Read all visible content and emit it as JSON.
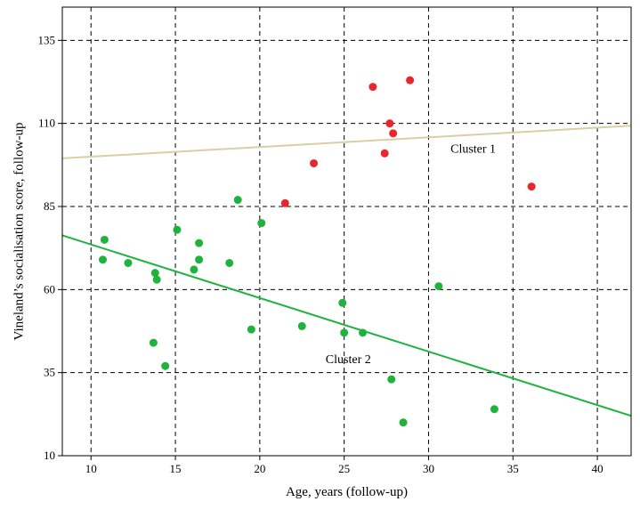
{
  "chart_data": {
    "type": "scatter",
    "xlabel": "Age, years (follow-up)",
    "ylabel": "Vineland’s socialisation score, follow-up",
    "xlim": [
      8.3,
      42
    ],
    "ylim": [
      10,
      145
    ],
    "xticks": [
      "10",
      "15",
      "20",
      "25",
      "30",
      "35",
      "40"
    ],
    "yticks": [
      "10",
      "35",
      "60",
      "85",
      "110",
      "135"
    ],
    "grid": true,
    "series": [
      {
        "color": "#e8262c",
        "points": [
          [
            21.5,
            86
          ],
          [
            23.2,
            98
          ],
          [
            26.7,
            121
          ],
          [
            27.4,
            101
          ],
          [
            27.7,
            110
          ],
          [
            27.9,
            107
          ],
          [
            28.9,
            123
          ],
          [
            36.1,
            91
          ]
        ]
      },
      {
        "color": "#1fb33e",
        "points": [
          [
            10.7,
            69
          ],
          [
            10.8,
            75
          ],
          [
            12.2,
            68
          ],
          [
            13.7,
            44
          ],
          [
            13.8,
            65
          ],
          [
            13.9,
            63
          ],
          [
            14.4,
            37
          ],
          [
            15.1,
            78
          ],
          [
            16.1,
            66
          ],
          [
            16.4,
            74
          ],
          [
            16.4,
            69
          ],
          [
            18.2,
            68
          ],
          [
            18.7,
            87
          ],
          [
            19.5,
            48
          ],
          [
            20.1,
            80
          ],
          [
            22.5,
            49
          ],
          [
            24.9,
            56
          ],
          [
            25.0,
            47
          ],
          [
            26.1,
            47
          ],
          [
            27.8,
            33
          ],
          [
            28.5,
            20
          ],
          [
            30.6,
            61
          ],
          [
            33.9,
            24
          ]
        ]
      }
    ],
    "fit_lines": [
      {
        "color": "#d8cfa6",
        "points": [
          [
            8.3,
            99.5
          ],
          [
            42,
            109.3
          ]
        ]
      },
      {
        "color": "#1fb33e",
        "points": [
          [
            8.3,
            76.3
          ],
          [
            42,
            22
          ]
        ]
      }
    ],
    "annotations": [
      {
        "text": "Cluster 1",
        "x": 31.3,
        "y": 101.2
      },
      {
        "text": "Cluster 2",
        "x": 23.9,
        "y": 37.9
      }
    ]
  }
}
